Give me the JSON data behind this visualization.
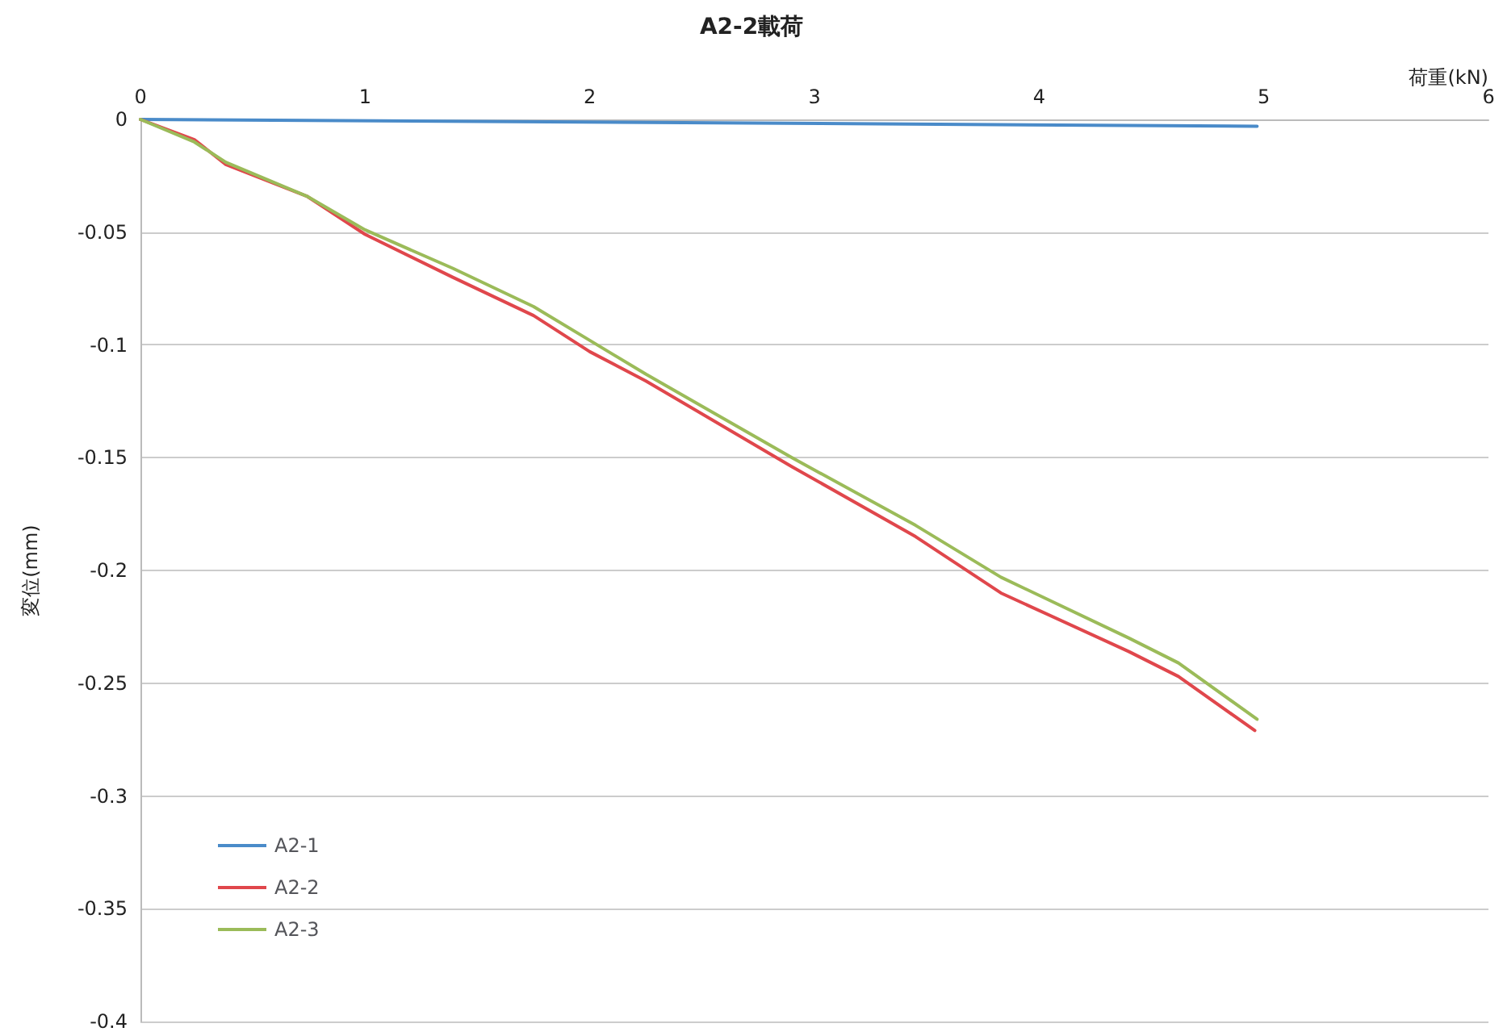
{
  "chart_data": {
    "type": "line",
    "title": "A2-2載荷",
    "xlabel": "荷重(kN)",
    "ylabel": "変位(mm)",
    "xlim": [
      0,
      6
    ],
    "xticks": [
      0,
      1,
      2,
      3,
      4,
      5,
      6
    ],
    "ylim": [
      -0.4,
      0
    ],
    "yticks": [
      -0.4,
      -0.35,
      -0.3,
      -0.25,
      -0.2,
      -0.15,
      -0.1,
      -0.05,
      0
    ],
    "grid": "y",
    "legend": "bottom left",
    "marker": "none",
    "line_style": "solid",
    "series": [
      {
        "name": "A2-1",
        "color": "#4a8bc9",
        "x": [
          0,
          4.97
        ],
        "values": [
          0,
          -0.003
        ]
      },
      {
        "name": "A2-2",
        "color": "#e0474c",
        "x": [
          0,
          0.24,
          0.38,
          0.74,
          1.0,
          1.39,
          1.75,
          2.0,
          2.25,
          2.9,
          3.45,
          3.83,
          4.4,
          4.62,
          4.96
        ],
        "values": [
          0,
          -0.009,
          -0.02,
          -0.034,
          -0.051,
          -0.07,
          -0.087,
          -0.103,
          -0.116,
          -0.154,
          -0.185,
          -0.21,
          -0.236,
          -0.247,
          -0.271
        ]
      },
      {
        "name": "A2-3",
        "color": "#9bbb59",
        "x": [
          0,
          0.24,
          0.38,
          0.74,
          1.0,
          1.39,
          1.75,
          2.0,
          2.25,
          2.9,
          3.45,
          3.83,
          4.4,
          4.62,
          4.97
        ],
        "values": [
          0,
          -0.01,
          -0.019,
          -0.034,
          -0.049,
          -0.066,
          -0.083,
          -0.098,
          -0.113,
          -0.15,
          -0.18,
          -0.203,
          -0.23,
          -0.241,
          -0.266
        ]
      }
    ]
  }
}
